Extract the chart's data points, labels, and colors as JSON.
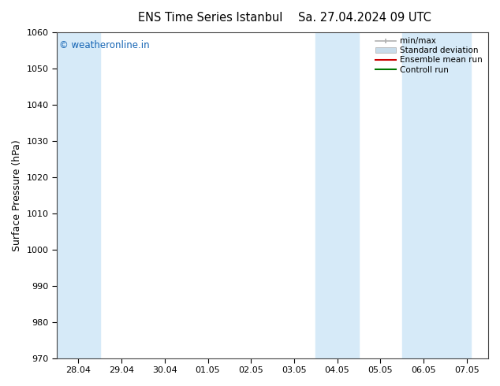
{
  "title": "ENS Time Series Istanbul",
  "title2": "Sa. 27.04.2024 09 UTC",
  "ylabel": "Surface Pressure (hPa)",
  "ylim": [
    970,
    1060
  ],
  "yticks": [
    970,
    980,
    990,
    1000,
    1010,
    1020,
    1030,
    1040,
    1050,
    1060
  ],
  "xlabels": [
    "28.04",
    "29.04",
    "30.04",
    "01.05",
    "02.05",
    "03.05",
    "04.05",
    "05.05",
    "06.05",
    "07.05"
  ],
  "shade_color": "#d6eaf8",
  "shade_ranges": [
    [
      0,
      1
    ],
    [
      6,
      7
    ],
    [
      8,
      9.6
    ]
  ],
  "watermark": "© weatheronline.in",
  "watermark_color": "#1464b4",
  "legend_items": [
    {
      "label": "min/max",
      "color": "#b0b0b0",
      "type": "line_with_bars"
    },
    {
      "label": "Standard deviation",
      "color": "#c8dcea",
      "type": "fill"
    },
    {
      "label": "Ensemble mean run",
      "color": "#cc0000",
      "type": "line"
    },
    {
      "label": "Controll run",
      "color": "#007700",
      "type": "line"
    }
  ],
  "background_color": "#ffffff",
  "plot_bg_color": "#ffffff"
}
